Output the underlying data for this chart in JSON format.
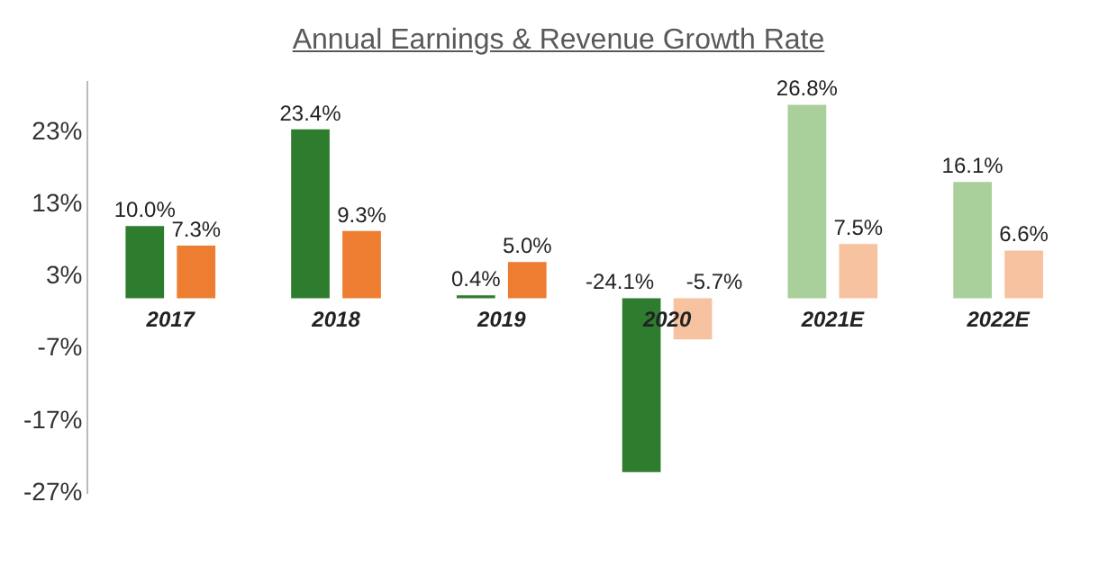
{
  "chart_data": {
    "type": "bar",
    "title": "Annual Earnings & Revenue Growth Rate",
    "categories": [
      "2017",
      "2018",
      "2019",
      "2020",
      "2021E",
      "2022E"
    ],
    "series": [
      {
        "colors": [
          "#2e7d2e",
          "#2e7d2e",
          "#2e7d2e",
          "#2e7d2e",
          "#a9cf9a",
          "#a9cf9a"
        ],
        "values": [
          10.0,
          23.4,
          0.4,
          -24.1,
          26.8,
          16.1
        ],
        "value_labels": [
          "10.0%",
          "23.4%",
          "0.4%",
          "-24.1%",
          "26.8%",
          "16.1%"
        ]
      },
      {
        "colors": [
          "#ed7d31",
          "#ed7d31",
          "#ed7d31",
          "#f7c2a0",
          "#f7c2a0",
          "#f7c2a0"
        ],
        "values": [
          7.3,
          9.3,
          5.0,
          -5.7,
          7.5,
          6.6
        ],
        "value_labels": [
          "7.3%",
          "9.3%",
          "5.0%",
          "-5.7%",
          "7.5%",
          "6.6%"
        ]
      }
    ],
    "ylim": [
      -27,
      30
    ],
    "yticks": [
      {
        "value": -27,
        "label": "-27%"
      },
      {
        "value": -17,
        "label": "-17%"
      },
      {
        "value": -7,
        "label": "-7%"
      },
      {
        "value": 3,
        "label": "3%"
      },
      {
        "value": 13,
        "label": "13%"
      },
      {
        "value": 23,
        "label": "23%"
      }
    ],
    "grid": false,
    "legend": false
  }
}
